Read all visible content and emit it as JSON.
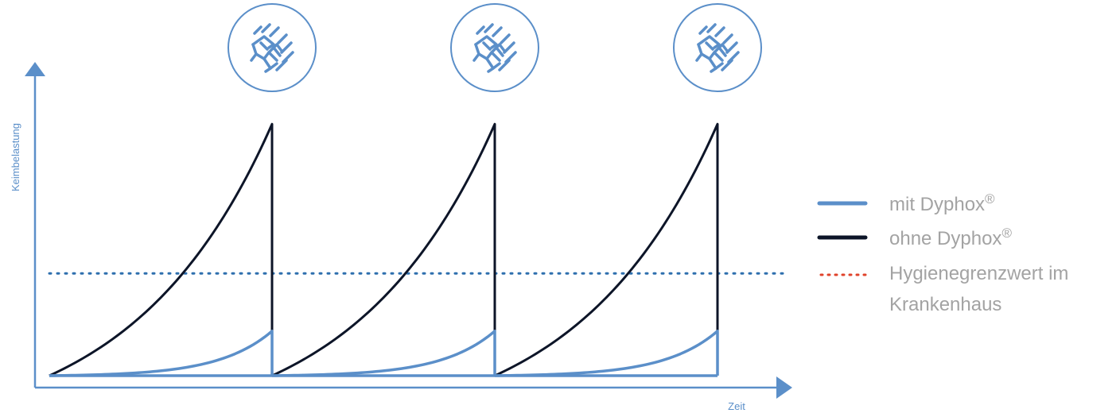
{
  "chart_data": {
    "type": "line",
    "xlabel": "Zeit",
    "ylabel": "Keimbelastung",
    "x": [
      0,
      1,
      2,
      3
    ],
    "ylim": [
      0,
      1
    ],
    "series": [
      {
        "name": "mit Dyphox",
        "name_sup": "®",
        "color": "#5b8fc9",
        "style": "solid",
        "cycles": [
          {
            "start": 0,
            "end": 1,
            "y_start": 0,
            "y_end": 0.17
          },
          {
            "start": 1,
            "end": 2,
            "y_start": 0,
            "y_end": 0.17
          },
          {
            "start": 2,
            "end": 3,
            "y_start": 0,
            "y_end": 0.17
          }
        ]
      },
      {
        "name": "ohne Dyphox",
        "name_sup": "®",
        "color": "#0d1528",
        "style": "solid",
        "cycles": [
          {
            "start": 0,
            "end": 1,
            "y_start": 0,
            "y_end": 0.96
          },
          {
            "start": 1,
            "end": 2,
            "y_start": 0,
            "y_end": 0.96
          },
          {
            "start": 2,
            "end": 3,
            "y_start": 0,
            "y_end": 0.96
          }
        ]
      }
    ],
    "threshold": {
      "name": "Hygienegrenzwert im Krankenhaus",
      "lines": [
        "Hygienegrenzwert im",
        "Krankenhaus"
      ],
      "y": 0.39,
      "line_color": "#2e6fae",
      "legend_color": "#e0432b",
      "style": "dotted"
    },
    "annotations": [
      {
        "x": 1,
        "icon": "hand-cleaning-icon"
      },
      {
        "x": 2,
        "icon": "hand-cleaning-icon"
      },
      {
        "x": 3,
        "icon": "hand-cleaning-icon"
      }
    ],
    "axis_color": "#5b8fc9",
    "label_color": "#5b8fc9",
    "legend_text_color": "#a3a3a3",
    "icon_color": "#5b8fc9",
    "grid": false,
    "legend": "right"
  }
}
